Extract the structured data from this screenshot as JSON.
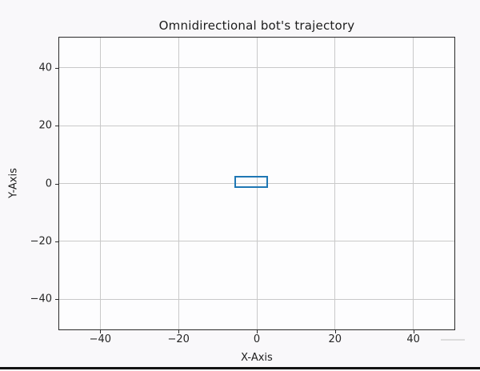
{
  "figure": {
    "title": "Omnidirectional bot's trajectory",
    "xlabel": "X-Axis",
    "ylabel": "Y-Axis"
  },
  "chart_data": {
    "type": "trajectory-plot",
    "title": "Omnidirectional bot's trajectory",
    "xlabel": "X-Axis",
    "ylabel": "Y-Axis",
    "xlim": [
      -50.5,
      50.5
    ],
    "ylim": [
      -50.5,
      50.5
    ],
    "xticks": [
      -40,
      -20,
      0,
      20,
      40
    ],
    "yticks": [
      -40,
      -20,
      0,
      20,
      40
    ],
    "xtick_labels": [
      "−40",
      "−20",
      "0",
      "20",
      "40"
    ],
    "ytick_labels": [
      "−40",
      "−20",
      "0",
      "20",
      "40"
    ],
    "grid": true,
    "legend": "none",
    "series": [],
    "bot_rect": {
      "x": -5.7,
      "y": -1.6,
      "width": 8.5,
      "height": 4.3,
      "edge_color": "#1f77b4",
      "fill": "none"
    }
  },
  "colors": {
    "figure_bg": "#f9f8fa",
    "axes_bg": "#fdfdfe",
    "grid": "#c9c9c9",
    "axes_border": "#2a2a2a",
    "text": "#1c1c1c",
    "bot_edge": "#1f77b4",
    "bottom_bar": "#131313"
  }
}
